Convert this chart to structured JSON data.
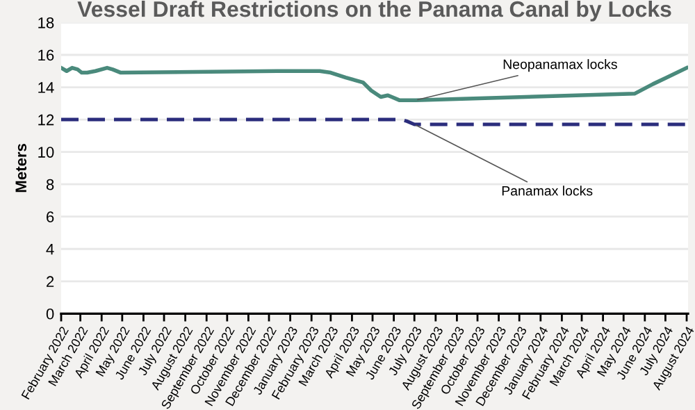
{
  "chart_data": {
    "type": "line",
    "title": "Vessel Draft Restrictions on the Panama Canal by Locks",
    "ylabel": "Meters",
    "xlim": [
      "2022-02-01",
      "2024-08-03"
    ],
    "xticks": [
      {
        "value": "2022-02-01",
        "label": "February 2022"
      },
      {
        "value": "2022-03-01",
        "label": "March 2022"
      },
      {
        "value": "2022-04-01",
        "label": "April 2022"
      },
      {
        "value": "2022-05-01",
        "label": "May 2022"
      },
      {
        "value": "2022-06-01",
        "label": "June 2022"
      },
      {
        "value": "2022-07-01",
        "label": "July 2022"
      },
      {
        "value": "2022-08-01",
        "label": "August 2022"
      },
      {
        "value": "2022-09-01",
        "label": "September 2022"
      },
      {
        "value": "2022-10-01",
        "label": "October 2022"
      },
      {
        "value": "2022-11-01",
        "label": "November 2022"
      },
      {
        "value": "2022-12-01",
        "label": "December 2022"
      },
      {
        "value": "2023-01-01",
        "label": "January 2023"
      },
      {
        "value": "2023-02-01",
        "label": "February 2023"
      },
      {
        "value": "2023-03-01",
        "label": "March 2023"
      },
      {
        "value": "2023-04-01",
        "label": "April 2023"
      },
      {
        "value": "2023-05-01",
        "label": "May 2023"
      },
      {
        "value": "2023-06-01",
        "label": "June 2023"
      },
      {
        "value": "2023-07-01",
        "label": "July 2023"
      },
      {
        "value": "2023-08-01",
        "label": "August 2023"
      },
      {
        "value": "2023-09-01",
        "label": "September 2023"
      },
      {
        "value": "2023-10-01",
        "label": "October 2023"
      },
      {
        "value": "2023-11-01",
        "label": "November 2023"
      },
      {
        "value": "2023-12-01",
        "label": "December 2023"
      },
      {
        "value": "2024-01-01",
        "label": "January 2024"
      },
      {
        "value": "2024-02-01",
        "label": "February 2024"
      },
      {
        "value": "2024-03-01",
        "label": "March 2024"
      },
      {
        "value": "2024-04-01",
        "label": "April 2024"
      },
      {
        "value": "2024-05-01",
        "label": "May 2024"
      },
      {
        "value": "2024-06-01",
        "label": "June 2024"
      },
      {
        "value": "2024-07-01",
        "label": "July 2024"
      },
      {
        "value": "2024-08-01",
        "label": "August 2024"
      }
    ],
    "ylim": [
      0,
      18
    ],
    "yticks": [
      0,
      2,
      4,
      6,
      8,
      10,
      12,
      14,
      16,
      18
    ],
    "grid": "y",
    "legend": false,
    "series": [
      {
        "name": "Neopanamax locks",
        "color": "#4a8a7c",
        "line_style": "solid",
        "x": [
          "2022-02-01",
          "2022-02-09",
          "2022-02-17",
          "2022-02-25",
          "2022-03-03",
          "2022-03-11",
          "2022-03-23",
          "2022-04-09",
          "2022-04-17",
          "2022-04-29",
          "2022-12-13",
          "2023-02-13",
          "2023-03-01",
          "2023-03-23",
          "2023-04-17",
          "2023-04-29",
          "2023-05-13",
          "2023-05-23",
          "2023-05-29",
          "2023-06-09",
          "2023-07-03",
          "2024-05-17",
          "2024-06-13",
          "2024-07-03",
          "2024-08-01"
        ],
        "values": [
          15.2,
          15.0,
          15.2,
          15.1,
          14.9,
          14.9,
          15.0,
          15.2,
          15.1,
          14.9,
          15.0,
          15.0,
          14.9,
          14.6,
          14.3,
          13.8,
          13.4,
          13.5,
          13.4,
          13.2,
          13.2,
          13.6,
          14.2,
          14.6,
          15.2
        ]
      },
      {
        "name": "Panamax locks",
        "color": "#2b2d7c",
        "line_style": "dashed",
        "x": [
          "2022-02-01",
          "2023-06-12",
          "2023-06-20",
          "2023-07-01",
          "2024-08-01"
        ],
        "values": [
          12.0,
          12.0,
          11.9,
          11.7,
          11.7
        ]
      }
    ]
  }
}
